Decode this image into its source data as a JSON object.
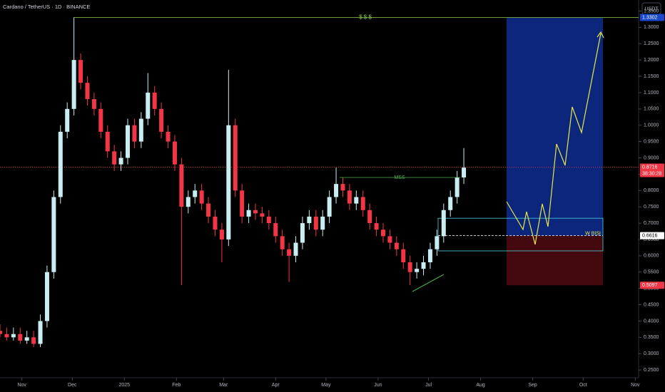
{
  "chart_data": {
    "type": "candlestick",
    "title": "Cardano / TetherUS · 1D · BINANCE",
    "currency": "USDT",
    "up_color": "#c8eef2",
    "down_color": "#f23645",
    "x": [
      0,
      4,
      8,
      12,
      16,
      20,
      24,
      28,
      32,
      36,
      40,
      44,
      48,
      52,
      56,
      60,
      64,
      68,
      72,
      76,
      80,
      84,
      88,
      92,
      96,
      100,
      104,
      108,
      112,
      116,
      120,
      124,
      128,
      132,
      136,
      140,
      144,
      148,
      152,
      156,
      160,
      164,
      168,
      172,
      176,
      180,
      184,
      188,
      192,
      196,
      200,
      204,
      208,
      212,
      216,
      220,
      224,
      228,
      232,
      236,
      240,
      244,
      248,
      252,
      256,
      260,
      264,
      268,
      272,
      276
    ],
    "open": [
      0.37,
      0.36,
      0.35,
      0.36,
      0.34,
      0.35,
      0.33,
      0.4,
      0.55,
      0.78,
      0.98,
      1.05,
      1.2,
      1.13,
      1.08,
      1.05,
      0.98,
      0.92,
      0.88,
      0.9,
      1.0,
      0.95,
      1.02,
      1.1,
      1.05,
      0.98,
      0.95,
      0.88,
      0.75,
      0.78,
      0.8,
      0.76,
      0.72,
      0.68,
      0.65,
      1.0,
      0.8,
      0.72,
      0.74,
      0.73,
      0.72,
      0.7,
      0.66,
      0.62,
      0.6,
      0.64,
      0.7,
      0.72,
      0.68,
      0.72,
      0.78,
      0.82,
      0.8,
      0.76,
      0.78,
      0.74,
      0.7,
      0.68,
      0.66,
      0.64,
      0.62,
      0.58,
      0.55,
      0.56,
      0.58,
      0.62,
      0.66,
      0.74,
      0.78,
      0.84
    ],
    "high": [
      0.39,
      0.38,
      0.38,
      0.38,
      0.37,
      0.37,
      0.42,
      0.57,
      0.8,
      1.0,
      1.07,
      1.33,
      1.22,
      1.15,
      1.1,
      1.07,
      1.0,
      0.94,
      0.92,
      1.02,
      1.02,
      1.04,
      1.16,
      1.12,
      1.07,
      1.0,
      0.97,
      0.9,
      0.8,
      0.82,
      0.82,
      0.78,
      0.74,
      0.7,
      1.17,
      1.02,
      0.82,
      0.76,
      0.76,
      0.75,
      0.74,
      0.72,
      0.68,
      0.64,
      0.66,
      0.72,
      0.74,
      0.74,
      0.74,
      0.8,
      0.87,
      0.84,
      0.82,
      0.8,
      0.8,
      0.76,
      0.72,
      0.7,
      0.68,
      0.66,
      0.64,
      0.6,
      0.58,
      0.6,
      0.64,
      0.68,
      0.76,
      0.8,
      0.86,
      0.93
    ],
    "low": [
      0.35,
      0.34,
      0.34,
      0.33,
      0.33,
      0.32,
      0.32,
      0.38,
      0.53,
      0.76,
      0.96,
      1.03,
      1.11,
      1.06,
      1.03,
      0.96,
      0.9,
      0.86,
      0.86,
      0.88,
      0.93,
      0.93,
      1.0,
      1.03,
      0.96,
      0.93,
      0.86,
      0.51,
      0.73,
      0.76,
      0.74,
      0.7,
      0.66,
      0.58,
      0.63,
      0.78,
      0.7,
      0.7,
      0.71,
      0.7,
      0.68,
      0.64,
      0.6,
      0.52,
      0.58,
      0.62,
      0.68,
      0.66,
      0.66,
      0.7,
      0.76,
      0.78,
      0.74,
      0.74,
      0.72,
      0.68,
      0.66,
      0.64,
      0.62,
      0.6,
      0.56,
      0.51,
      0.53,
      0.54,
      0.56,
      0.6,
      0.64,
      0.72,
      0.76,
      0.82
    ],
    "close": [
      0.36,
      0.35,
      0.36,
      0.34,
      0.35,
      0.33,
      0.4,
      0.55,
      0.78,
      0.98,
      1.05,
      1.2,
      1.13,
      1.08,
      1.05,
      0.98,
      0.92,
      0.88,
      0.9,
      1.0,
      0.95,
      1.02,
      1.1,
      1.05,
      0.98,
      0.95,
      0.88,
      0.75,
      0.78,
      0.8,
      0.76,
      0.72,
      0.68,
      0.65,
      1.0,
      0.8,
      0.72,
      0.74,
      0.73,
      0.72,
      0.7,
      0.66,
      0.62,
      0.6,
      0.64,
      0.7,
      0.72,
      0.68,
      0.72,
      0.78,
      0.82,
      0.8,
      0.76,
      0.78,
      0.74,
      0.7,
      0.68,
      0.66,
      0.64,
      0.62,
      0.58,
      0.55,
      0.56,
      0.58,
      0.62,
      0.66,
      0.74,
      0.78,
      0.84,
      0.87
    ],
    "xlim": [
      0,
      380
    ],
    "xticks": [
      {
        "value": 13,
        "label": "Nov"
      },
      {
        "value": 43,
        "label": "Dec"
      },
      {
        "value": 74,
        "label": "2025"
      },
      {
        "value": 105,
        "label": "Feb"
      },
      {
        "value": 133,
        "label": "Mar"
      },
      {
        "value": 164,
        "label": "Apr"
      },
      {
        "value": 194,
        "label": "May"
      },
      {
        "value": 225,
        "label": "Jun"
      },
      {
        "value": 255,
        "label": "Jul"
      },
      {
        "value": 286,
        "label": "Aug"
      },
      {
        "value": 317,
        "label": "Sep"
      },
      {
        "value": 347,
        "label": "Oct"
      },
      {
        "value": 378,
        "label": "Nov"
      }
    ],
    "ylim": [
      0.2262,
      1.3838
    ],
    "yticks": [
      {
        "value": 0.25,
        "label": "0.2500"
      },
      {
        "value": 0.3,
        "label": "0.3000"
      },
      {
        "value": 0.35,
        "label": "0.3500"
      },
      {
        "value": 0.4,
        "label": "0.4000"
      },
      {
        "value": 0.45,
        "label": "0.4500"
      },
      {
        "value": 0.5,
        "label": "0.5000"
      },
      {
        "value": 0.55,
        "label": "0.5500"
      },
      {
        "value": 0.6,
        "label": "0.6000"
      },
      {
        "value": 0.65,
        "label": "0.6500"
      },
      {
        "value": 0.7,
        "label": "0.7000"
      },
      {
        "value": 0.75,
        "label": "0.7500"
      },
      {
        "value": 0.8,
        "label": "0.8000"
      },
      {
        "value": 0.85,
        "label": "0.8500"
      },
      {
        "value": 0.9,
        "label": "0.9000"
      },
      {
        "value": 0.95,
        "label": "0.9500"
      },
      {
        "value": 1.0,
        "label": "1.0000"
      },
      {
        "value": 1.05,
        "label": "1.0500"
      },
      {
        "value": 1.1,
        "label": "1.1000"
      },
      {
        "value": 1.15,
        "label": "1.1500"
      },
      {
        "value": 1.2,
        "label": "1.2000"
      },
      {
        "value": 1.25,
        "label": "1.2500"
      },
      {
        "value": 1.3,
        "label": "1.3000"
      },
      {
        "value": 1.35,
        "label": "1.3500"
      }
    ],
    "last_price": 0.8716,
    "countdown": "38:30:28",
    "position": {
      "target": 1.3302,
      "entry": 0.6616,
      "stop": 0.5097
    },
    "fvg_zone": [
      0.615,
      0.715
    ],
    "mss_level": 0.84,
    "annotations": {
      "target_text": "$ $ $",
      "mss_text": "MSS",
      "entry_text": "W BISI"
    }
  }
}
